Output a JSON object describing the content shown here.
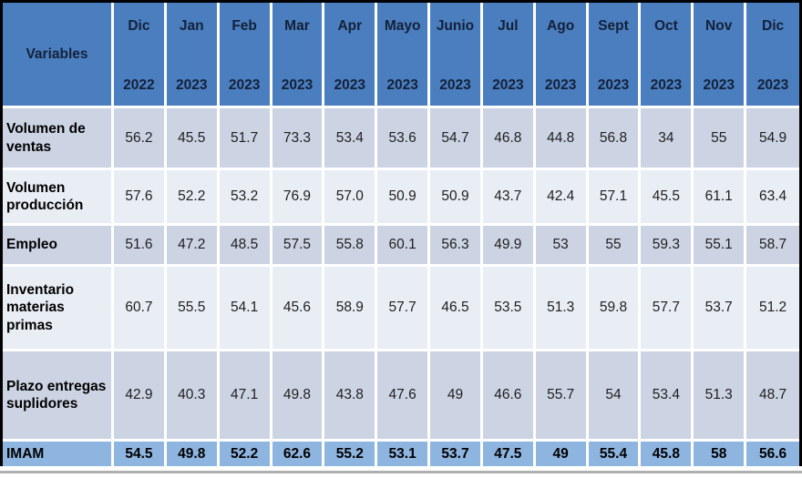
{
  "table": {
    "header": {
      "variables_label": "Variables",
      "columns": [
        {
          "month": "Dic",
          "year": "2022"
        },
        {
          "month": "Jan",
          "year": "2023"
        },
        {
          "month": "Feb",
          "year": "2023"
        },
        {
          "month": "Mar",
          "year": "2023"
        },
        {
          "month": "Apr",
          "year": "2023"
        },
        {
          "month": "Mayo",
          "year": "2023"
        },
        {
          "month": "Junio",
          "year": "2023"
        },
        {
          "month": "Jul",
          "year": "2023"
        },
        {
          "month": "Ago",
          "year": "2023"
        },
        {
          "month": "Sept",
          "year": "2023"
        },
        {
          "month": "Oct",
          "year": "2023"
        },
        {
          "month": "Nov",
          "year": "2023"
        },
        {
          "month": "Dic",
          "year": "2023"
        }
      ]
    },
    "rows": [
      {
        "label": "Volumen de ventas",
        "total": false,
        "values": [
          "56.2",
          "45.5",
          "51.7",
          "73.3",
          "53.4",
          "53.6",
          "54.7",
          "46.8",
          "44.8",
          "56.8",
          "34",
          "55",
          "54.9"
        ]
      },
      {
        "label": "Volumen producción",
        "total": false,
        "values": [
          "57.6",
          "52.2",
          "53.2",
          "76.9",
          "57.0",
          "50.9",
          "50.9",
          "43.7",
          "42.4",
          "57.1",
          "45.5",
          "61.1",
          "63.4"
        ]
      },
      {
        "label": "Empleo",
        "total": false,
        "values": [
          "51.6",
          "47.2",
          "48.5",
          "57.5",
          "55.8",
          "60.1",
          "56.3",
          "49.9",
          "53",
          "55",
          "59.3",
          "55.1",
          "58.7"
        ]
      },
      {
        "label": "Inventario materias primas",
        "total": false,
        "values": [
          "60.7",
          "55.5",
          "54.1",
          "45.6",
          "58.9",
          "57.7",
          "46.5",
          "53.5",
          "51.3",
          "59.8",
          "57.7",
          "53.7",
          "51.2"
        ]
      },
      {
        "label": "Plazo entregas suplidores",
        "total": false,
        "values": [
          "42.9",
          "40.3",
          "47.1",
          "49.8",
          "43.8",
          "47.6",
          "49",
          "46.6",
          "55.7",
          "54",
          "53.4",
          "51.3",
          "48.7"
        ]
      },
      {
        "label": "IMAM",
        "total": true,
        "values": [
          "54.5",
          "49.8",
          "52.2",
          "62.6",
          "55.2",
          "53.1",
          "53.7",
          "47.5",
          "49",
          "55.4",
          "45.8",
          "58",
          "56.6"
        ]
      }
    ]
  },
  "chart_data": {
    "type": "table",
    "title": "",
    "columns": [
      "Variables",
      "Dic 2022",
      "Jan 2023",
      "Feb 2023",
      "Mar 2023",
      "Apr 2023",
      "Mayo 2023",
      "Junio 2023",
      "Jul 2023",
      "Ago 2023",
      "Sept 2023",
      "Oct 2023",
      "Nov 2023",
      "Dic 2023"
    ],
    "rows": [
      [
        "Volumen de ventas",
        56.2,
        45.5,
        51.7,
        73.3,
        53.4,
        53.6,
        54.7,
        46.8,
        44.8,
        56.8,
        34,
        55,
        54.9
      ],
      [
        "Volumen producción",
        57.6,
        52.2,
        53.2,
        76.9,
        57.0,
        50.9,
        50.9,
        43.7,
        42.4,
        57.1,
        45.5,
        61.1,
        63.4
      ],
      [
        "Empleo",
        51.6,
        47.2,
        48.5,
        57.5,
        55.8,
        60.1,
        56.3,
        49.9,
        53,
        55,
        59.3,
        55.1,
        58.7
      ],
      [
        "Inventario materias primas",
        60.7,
        55.5,
        54.1,
        45.6,
        58.9,
        57.7,
        46.5,
        53.5,
        51.3,
        59.8,
        57.7,
        53.7,
        51.2
      ],
      [
        "Plazo entregas suplidores",
        42.9,
        40.3,
        47.1,
        49.8,
        43.8,
        47.6,
        49,
        46.6,
        55.7,
        54,
        53.4,
        51.3,
        48.7
      ],
      [
        "IMAM",
        54.5,
        49.8,
        52.2,
        62.6,
        55.2,
        53.1,
        53.7,
        47.5,
        49,
        55.4,
        45.8,
        58,
        56.6
      ]
    ]
  },
  "colors": {
    "header_bg": "#4a7ebe",
    "header_text": "#14213a",
    "row_odd_bg": "#ccd3e3",
    "row_even_bg": "#e9edf4",
    "total_row_bg": "#8eb4e0",
    "separator": "#ffffff",
    "outer_border": "#000000",
    "bottom_rule": "#b0b0b0"
  }
}
